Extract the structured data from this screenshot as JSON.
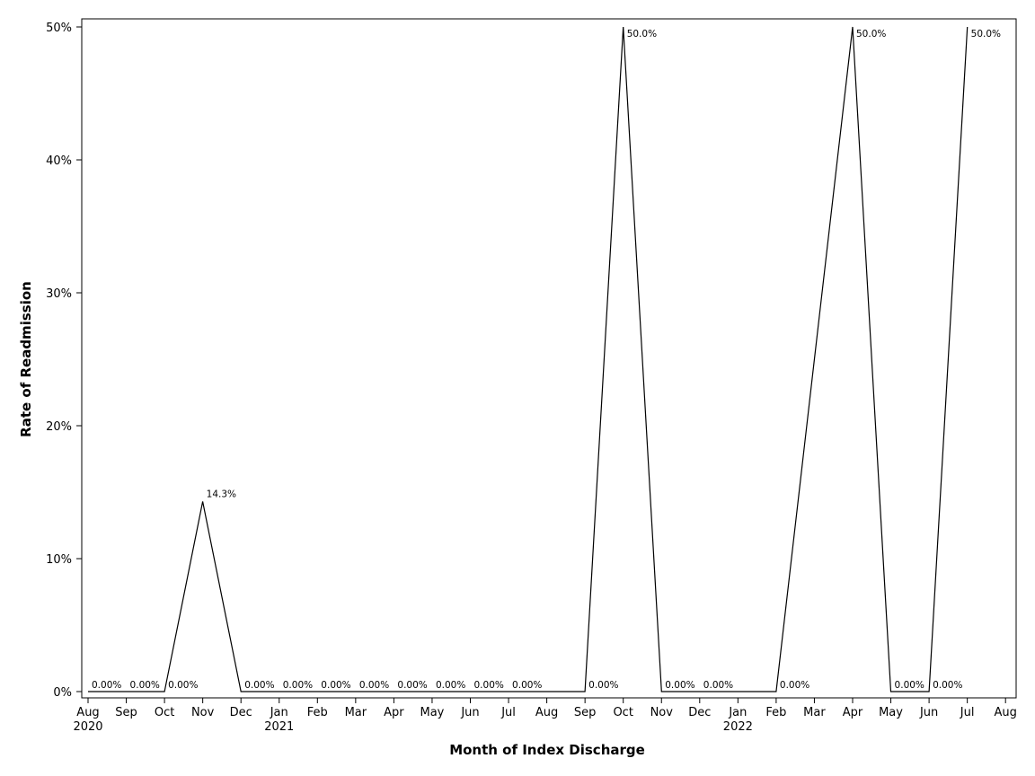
{
  "chart_data": {
    "type": "line",
    "xlabel": "Month of Index Discharge",
    "ylabel": "Rate of Readmission",
    "ylim": [
      0,
      50
    ],
    "y_tick_labels": [
      "0%",
      "10%",
      "20%",
      "30%",
      "40%",
      "50%"
    ],
    "y_tick_values": [
      0,
      10,
      20,
      30,
      40,
      50
    ],
    "x_tick_labels": [
      "Aug",
      "Sep",
      "Oct",
      "Nov",
      "Dec",
      "Jan",
      "Feb",
      "Mar",
      "Apr",
      "May",
      "Jun",
      "Jul",
      "Aug",
      "Sep",
      "Oct",
      "Nov",
      "Dec",
      "Jan",
      "Feb",
      "Mar",
      "Apr",
      "May",
      "Jun",
      "Jul",
      "Aug"
    ],
    "x_year_labels": [
      {
        "tick_index": 0,
        "label": "2020"
      },
      {
        "tick_index": 5,
        "label": "2021"
      },
      {
        "tick_index": 17,
        "label": "2022"
      }
    ],
    "series": [
      {
        "points": [
          {
            "month_index": 0,
            "value": 0,
            "label": "0.00%"
          },
          {
            "month_index": 1,
            "value": 0,
            "label": "0.00%"
          },
          {
            "month_index": 2,
            "value": 0,
            "label": "0.00%"
          },
          {
            "month_index": 3,
            "value": 14.3,
            "label": "14.3%"
          },
          {
            "month_index": 4,
            "value": 0,
            "label": "0.00%"
          },
          {
            "month_index": 5,
            "value": 0,
            "label": "0.00%"
          },
          {
            "month_index": 6,
            "value": 0,
            "label": "0.00%"
          },
          {
            "month_index": 7,
            "value": 0,
            "label": "0.00%"
          },
          {
            "month_index": 8,
            "value": 0,
            "label": "0.00%"
          },
          {
            "month_index": 9,
            "value": 0,
            "label": "0.00%"
          },
          {
            "month_index": 10,
            "value": 0,
            "label": "0.00%"
          },
          {
            "month_index": 11,
            "value": 0,
            "label": "0.00%"
          },
          {
            "month_index": 13,
            "value": 0,
            "label": "0.00%"
          },
          {
            "month_index": 14,
            "value": 50,
            "label": "50.0%"
          },
          {
            "month_index": 15,
            "value": 0,
            "label": "0.00%"
          },
          {
            "month_index": 16,
            "value": 0,
            "label": "0.00%"
          },
          {
            "month_index": 18,
            "value": 0,
            "label": "0.00%"
          },
          {
            "month_index": 20,
            "value": 50,
            "label": "50.0%"
          },
          {
            "month_index": 21,
            "value": 0,
            "label": "0.00%"
          },
          {
            "month_index": 22,
            "value": 0,
            "label": "0.00%"
          },
          {
            "month_index": 23,
            "value": 50,
            "label": "50.0%"
          }
        ]
      }
    ],
    "grid": false,
    "legend": "none",
    "line_color": "#000000"
  }
}
